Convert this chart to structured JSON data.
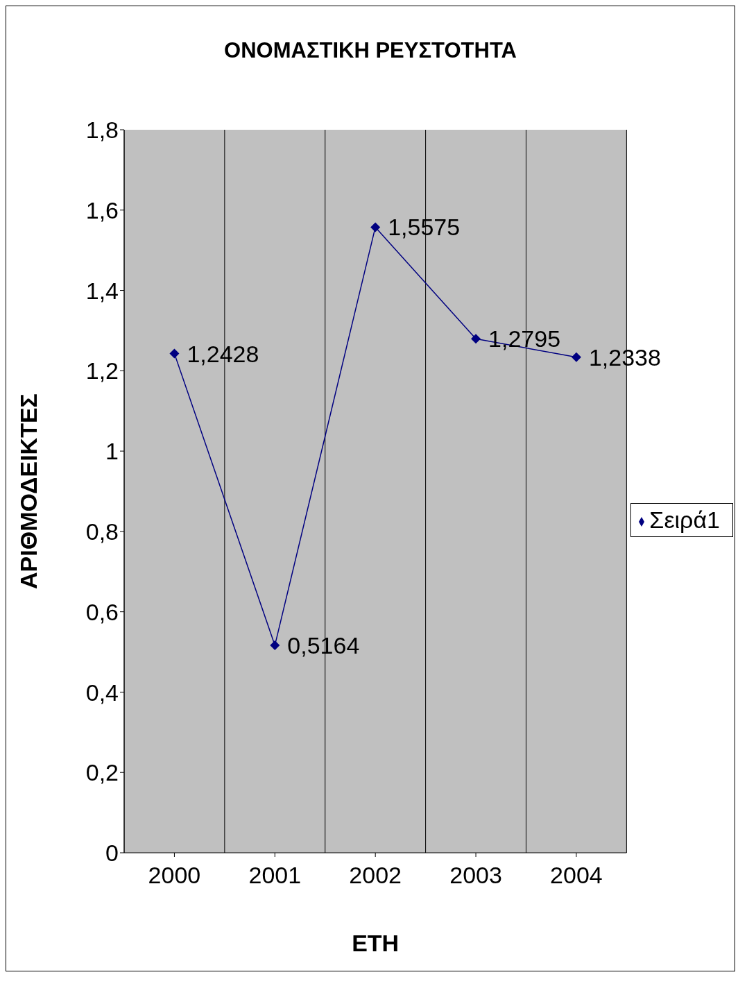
{
  "chart_data": {
    "type": "line",
    "title": "ΟΝΟΜΑΣΤΙΚΗ ΡΕΥΣΤΟΤΗΤΑ",
    "xlabel": "ΕΤΗ",
    "ylabel": "ΑΡΙΘΜΟΔΕΙΚΤΕΣ",
    "categories": [
      "2000",
      "2001",
      "2002",
      "2003",
      "2004"
    ],
    "series": [
      {
        "name": "Σειρά1",
        "color": "#000080",
        "values": [
          1.2428,
          0.5164,
          1.5575,
          1.2795,
          1.2338
        ],
        "value_labels": [
          "1,2428",
          "0,5164",
          "1,5575",
          "1,2795",
          "1,2338"
        ]
      }
    ],
    "ylim": [
      0,
      1.8
    ],
    "yticks": [
      {
        "value": 0,
        "label": "0"
      },
      {
        "value": 0.2,
        "label": "0,2"
      },
      {
        "value": 0.4,
        "label": "0,4"
      },
      {
        "value": 0.6,
        "label": "0,6"
      },
      {
        "value": 0.8,
        "label": "0,8"
      },
      {
        "value": 1,
        "label": "1"
      },
      {
        "value": 1.2,
        "label": "1,2"
      },
      {
        "value": 1.4,
        "label": "1,4"
      },
      {
        "value": 1.6,
        "label": "1,6"
      },
      {
        "value": 1.8,
        "label": "1,8"
      }
    ],
    "grid": "x",
    "legend": "right",
    "marker": "diamond",
    "line_style": "solid"
  }
}
